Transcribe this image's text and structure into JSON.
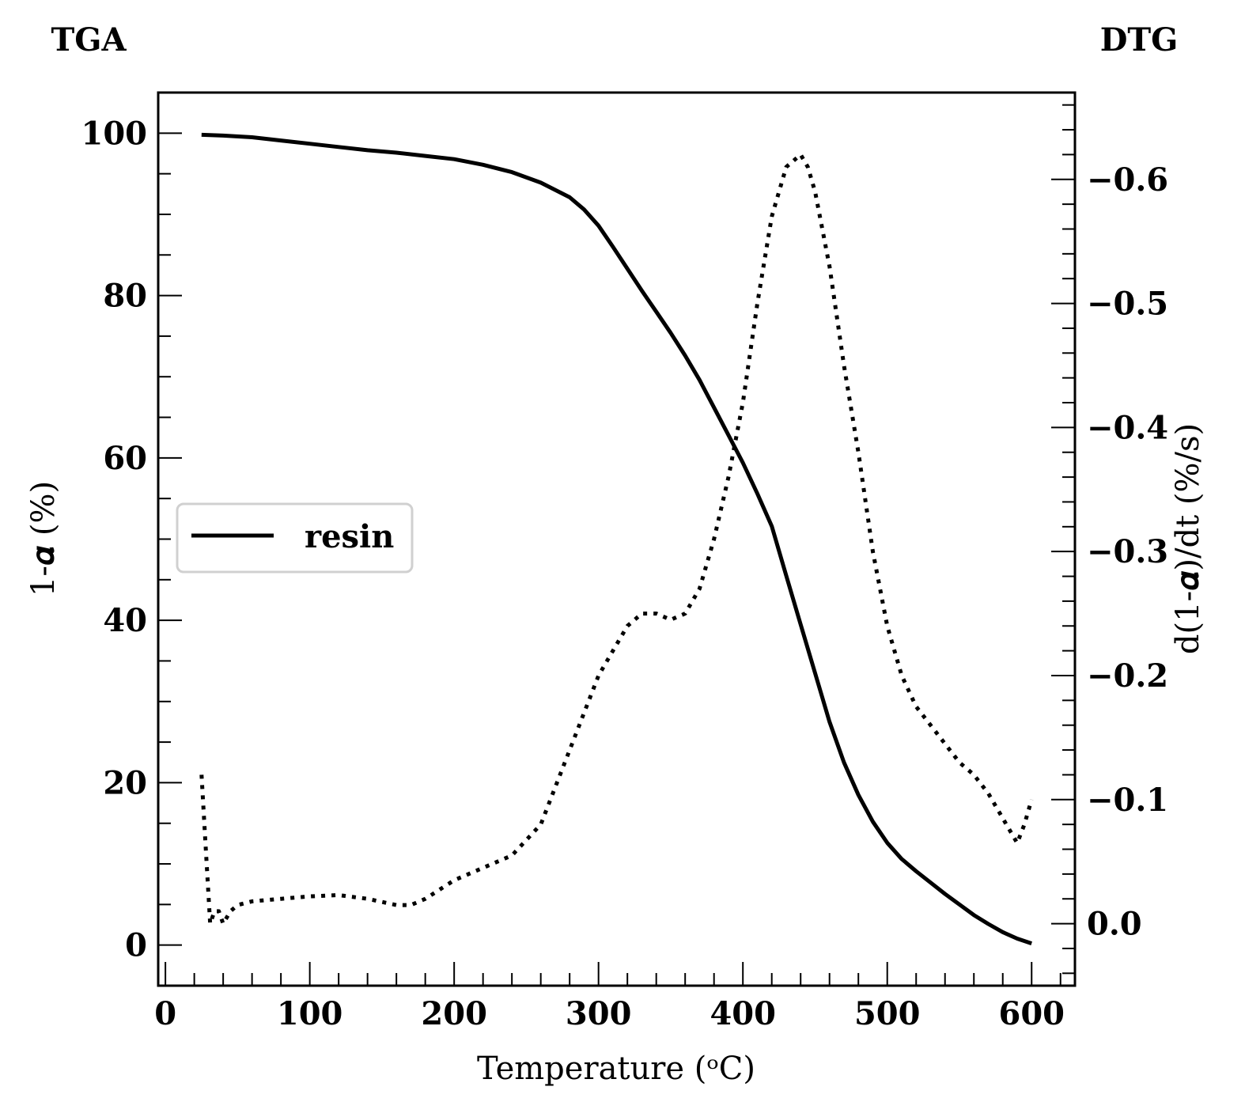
{
  "labels": {
    "left_title": "TGA",
    "right_title": "DTG",
    "xlabel": "Temperature (ᵒC)",
    "ylabel_left": "1-𝜶 (%)",
    "ylabel_right": "d(1-𝜶)/dt (%/s)"
  },
  "chart_data": {
    "type": "line",
    "x_axis": {
      "label": "Temperature (ᵒC)",
      "range": [
        -5,
        630
      ],
      "ticks": [
        0,
        100,
        200,
        300,
        400,
        500,
        600
      ],
      "minor_step": 20
    },
    "y_left": {
      "label": "1-𝜶 (%)",
      "range": [
        -5,
        105
      ],
      "ticks": [
        0,
        20,
        40,
        60,
        80,
        100
      ],
      "minor_step": 5
    },
    "y_right": {
      "label": "d(1-𝜶)/dt (%/s)",
      "range": [
        0.05,
        -0.67
      ],
      "inverted": true,
      "ticks": [
        0.0,
        -0.1,
        -0.2,
        -0.3,
        -0.4,
        -0.5,
        -0.6
      ],
      "tick_labels": [
        "0.0",
        "−0.1",
        "−0.2",
        "−0.3",
        "−0.4",
        "−0.5",
        "−0.6"
      ],
      "minor_step": 0.02
    },
    "grid": false,
    "legend": {
      "position": "center-left",
      "entries": [
        "resin"
      ]
    },
    "series": [
      {
        "name": "resin",
        "axis": "left",
        "style": "solid",
        "color": "#000000",
        "x": [
          25,
          40,
          60,
          80,
          100,
          120,
          140,
          160,
          180,
          200,
          220,
          240,
          260,
          280,
          290,
          300,
          310,
          320,
          330,
          340,
          350,
          360,
          370,
          380,
          390,
          400,
          410,
          420,
          430,
          440,
          450,
          460,
          470,
          480,
          490,
          500,
          510,
          520,
          530,
          540,
          550,
          560,
          570,
          580,
          590,
          600
        ],
        "y": [
          99.8,
          99.7,
          99.5,
          99.1,
          98.7,
          98.3,
          97.9,
          97.6,
          97.2,
          96.8,
          96.1,
          95.2,
          93.9,
          92.1,
          90.6,
          88.6,
          86.0,
          83.3,
          80.6,
          78.0,
          75.4,
          72.6,
          69.6,
          66.2,
          62.8,
          59.4,
          55.6,
          51.6,
          45.5,
          39.5,
          33.5,
          27.5,
          22.5,
          18.5,
          15.2,
          12.6,
          10.6,
          9.1,
          7.7,
          6.3,
          5.0,
          3.7,
          2.6,
          1.6,
          0.8,
          0.2
        ]
      },
      {
        "axis": "right",
        "style": "dotted",
        "color": "#000000",
        "x": [
          25,
          28,
          31,
          34,
          37,
          40,
          45,
          50,
          60,
          80,
          100,
          120,
          140,
          160,
          170,
          180,
          200,
          220,
          240,
          260,
          280,
          300,
          310,
          320,
          330,
          340,
          350,
          360,
          370,
          380,
          390,
          400,
          410,
          420,
          430,
          440,
          445,
          450,
          460,
          470,
          480,
          490,
          500,
          510,
          520,
          530,
          540,
          550,
          560,
          570,
          580,
          590,
          595,
          600
        ],
        "y": [
          -0.12,
          -0.06,
          0.0,
          -0.01,
          -0.01,
          0.0,
          -0.01,
          -0.015,
          -0.018,
          -0.02,
          -0.022,
          -0.023,
          -0.02,
          -0.015,
          -0.015,
          -0.02,
          -0.035,
          -0.045,
          -0.055,
          -0.08,
          -0.14,
          -0.2,
          -0.22,
          -0.24,
          -0.25,
          -0.25,
          -0.245,
          -0.25,
          -0.27,
          -0.31,
          -0.36,
          -0.42,
          -0.5,
          -0.57,
          -0.61,
          -0.62,
          -0.61,
          -0.59,
          -0.53,
          -0.45,
          -0.38,
          -0.3,
          -0.24,
          -0.2,
          -0.175,
          -0.16,
          -0.145,
          -0.13,
          -0.12,
          -0.105,
          -0.085,
          -0.065,
          -0.08,
          -0.1
        ]
      }
    ]
  }
}
